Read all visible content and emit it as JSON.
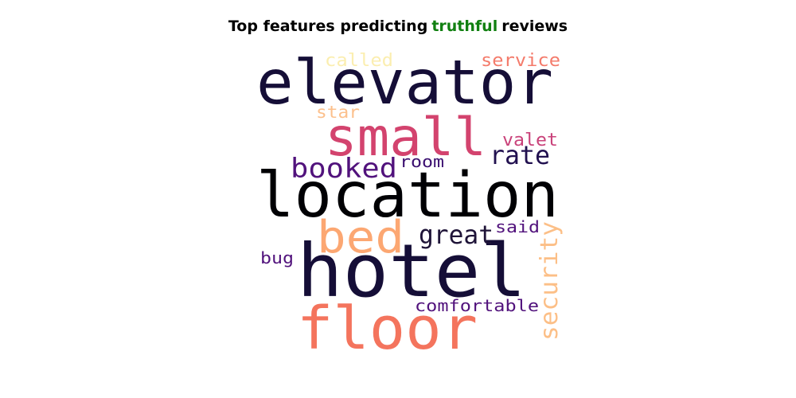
{
  "title": {
    "prefix": "Top features predicting",
    "highlight": "truthful",
    "suffix": "reviews",
    "highlight_color": "#118011"
  },
  "words": [
    {
      "text": "elevator",
      "color": "#150e37"
    },
    {
      "text": "small",
      "color": "#d3436e"
    },
    {
      "text": "location",
      "color": "#000004"
    },
    {
      "text": "hotel",
      "color": "#150e37"
    },
    {
      "text": "floor",
      "color": "#f4745d"
    },
    {
      "text": "bed",
      "color": "#fca772"
    },
    {
      "text": "booked",
      "color": "#51127c"
    },
    {
      "text": "rate",
      "color": "#221150"
    },
    {
      "text": "great",
      "color": "#1f1438"
    },
    {
      "text": "security",
      "color": "#fcbf87"
    },
    {
      "text": "service",
      "color": "#f47b6b"
    },
    {
      "text": "called",
      "color": "#fbeeb0"
    },
    {
      "text": "star",
      "color": "#fcc08c"
    },
    {
      "text": "valet",
      "color": "#c9427a"
    },
    {
      "text": "room",
      "color": "#3b0f70"
    },
    {
      "text": "said",
      "color": "#51127c"
    },
    {
      "text": "bug",
      "color": "#51127c"
    },
    {
      "text": "comfortable",
      "color": "#51127c"
    }
  ]
}
